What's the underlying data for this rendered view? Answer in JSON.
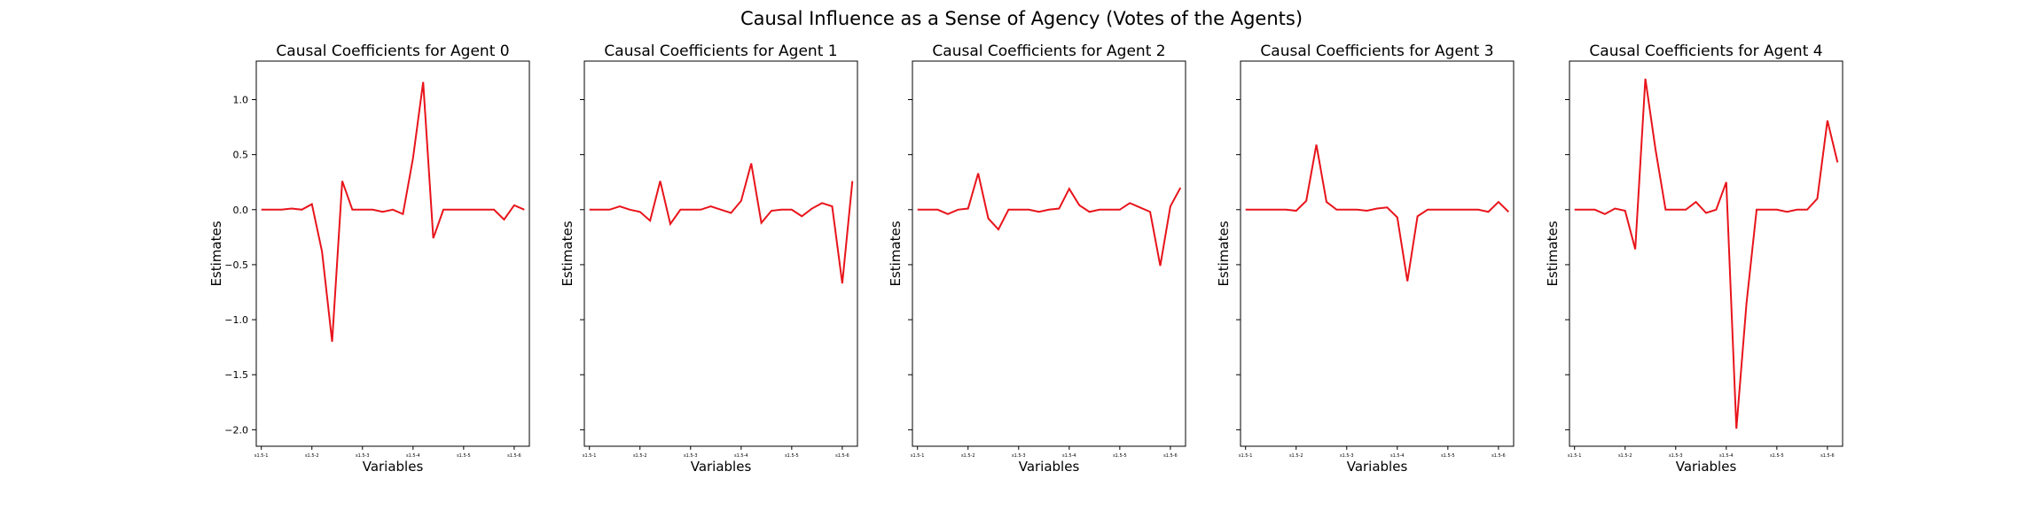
{
  "suptitle": "Causal Influence as a Sense of Agency (Votes of the Agents)",
  "colors": {
    "line": "#e8141b",
    "axes": "#000000",
    "background": "#ffffff"
  },
  "chart_data": [
    {
      "type": "line",
      "title": "Causal Coefficients for Agent 0",
      "xlabel": "Variables",
      "ylabel": "Estimates",
      "ylim": [
        -2.15,
        1.35
      ],
      "yticks": [
        1.0,
        0.5,
        0.0,
        -0.5,
        -1.0,
        -1.5,
        -2.0
      ],
      "ytick_labels": [
        "1.0",
        "0.5",
        "0.0",
        "−0.5",
        "−1.0",
        "−1.5",
        "−2.0"
      ],
      "xtick_positions": [
        0,
        5,
        10,
        15,
        20,
        25
      ],
      "xtick_labels": [
        "s1.5-1",
        "s1.5-2",
        "s1.5-3",
        "s1.5-4",
        "s1.5-5",
        "s1.5-6"
      ],
      "grid": false,
      "series": [
        {
          "values": [
            0,
            0,
            0,
            0.01,
            0,
            0.05,
            -0.38,
            -1.2,
            0.26,
            0,
            0,
            0,
            -0.02,
            0,
            -0.04,
            0.47,
            1.16,
            -0.26,
            0,
            0,
            0,
            0,
            0,
            0,
            -0.09,
            0.04,
            0
          ]
        }
      ]
    },
    {
      "type": "line",
      "title": "Causal Coefficients for Agent 1",
      "xlabel": "Variables",
      "ylabel": "Estimates",
      "ylim": [
        -2.15,
        1.35
      ],
      "yticks": [
        1.0,
        0.5,
        0.0,
        -0.5,
        -1.0,
        -1.5,
        -2.0
      ],
      "xtick_positions": [
        0,
        5,
        10,
        15,
        20,
        25
      ],
      "xtick_labels": [
        "s1.5-1",
        "s1.5-2",
        "s1.5-3",
        "s1.5-4",
        "s1.5-5",
        "s1.5-6"
      ],
      "grid": false,
      "series": [
        {
          "values": [
            0,
            0,
            0,
            0.03,
            0,
            -0.02,
            -0.1,
            0.26,
            -0.13,
            0,
            0,
            0,
            0.03,
            0,
            -0.03,
            0.08,
            0.42,
            -0.12,
            -0.01,
            0,
            0,
            -0.06,
            0.01,
            0.06,
            0.03,
            -0.67,
            0.26
          ]
        }
      ]
    },
    {
      "type": "line",
      "title": "Causal Coefficients for Agent 2",
      "xlabel": "Variables",
      "ylabel": "Estimates",
      "ylim": [
        -2.15,
        1.35
      ],
      "yticks": [
        1.0,
        0.5,
        0.0,
        -0.5,
        -1.0,
        -1.5,
        -2.0
      ],
      "xtick_positions": [
        0,
        5,
        10,
        15,
        20,
        25
      ],
      "xtick_labels": [
        "s1.5-1",
        "s1.5-2",
        "s1.5-3",
        "s1.5-4",
        "s1.5-5",
        "s1.5-6"
      ],
      "grid": false,
      "series": [
        {
          "values": [
            0,
            0,
            0,
            -0.04,
            0,
            0.01,
            0.33,
            -0.08,
            -0.18,
            0,
            0,
            0,
            -0.02,
            0,
            0.01,
            0.19,
            0.04,
            -0.02,
            0,
            0,
            0,
            0.06,
            0.02,
            -0.02,
            -0.51,
            0.03,
            0.2
          ]
        }
      ]
    },
    {
      "type": "line",
      "title": "Causal Coefficients for Agent 3",
      "xlabel": "Variables",
      "ylabel": "Estimates",
      "ylim": [
        -2.15,
        1.35
      ],
      "yticks": [
        1.0,
        0.5,
        0.0,
        -0.5,
        -1.0,
        -1.5,
        -2.0
      ],
      "xtick_positions": [
        0,
        5,
        10,
        15,
        20,
        25
      ],
      "xtick_labels": [
        "s1.5-1",
        "s1.5-2",
        "s1.5-3",
        "s1.5-4",
        "s1.5-5",
        "s1.5-6"
      ],
      "grid": false,
      "series": [
        {
          "values": [
            0,
            0,
            0,
            0,
            0,
            -0.01,
            0.08,
            0.59,
            0.07,
            0,
            0,
            0,
            -0.01,
            0.01,
            0.02,
            -0.07,
            -0.65,
            -0.06,
            0,
            0,
            0,
            0,
            0,
            0,
            -0.02,
            0.07,
            -0.02
          ]
        }
      ]
    },
    {
      "type": "line",
      "title": "Causal Coefficients for Agent 4",
      "xlabel": "Variables",
      "ylabel": "Estimates",
      "ylim": [
        -2.15,
        1.35
      ],
      "yticks": [
        1.0,
        0.5,
        0.0,
        -0.5,
        -1.0,
        -1.5,
        -2.0
      ],
      "xtick_positions": [
        0,
        5,
        10,
        15,
        20,
        25
      ],
      "xtick_labels": [
        "s1.5-1",
        "s1.5-2",
        "s1.5-3",
        "s1.5-4",
        "s1.5-5",
        "s1.5-6"
      ],
      "grid": false,
      "series": [
        {
          "values": [
            0,
            0,
            0,
            -0.04,
            0.01,
            -0.01,
            -0.36,
            1.19,
            0.55,
            0,
            0,
            0,
            0.07,
            -0.03,
            0,
            0.25,
            -1.99,
            -0.85,
            0,
            0,
            0,
            -0.02,
            0,
            0,
            0.1,
            0.81,
            0.43
          ]
        }
      ]
    }
  ]
}
